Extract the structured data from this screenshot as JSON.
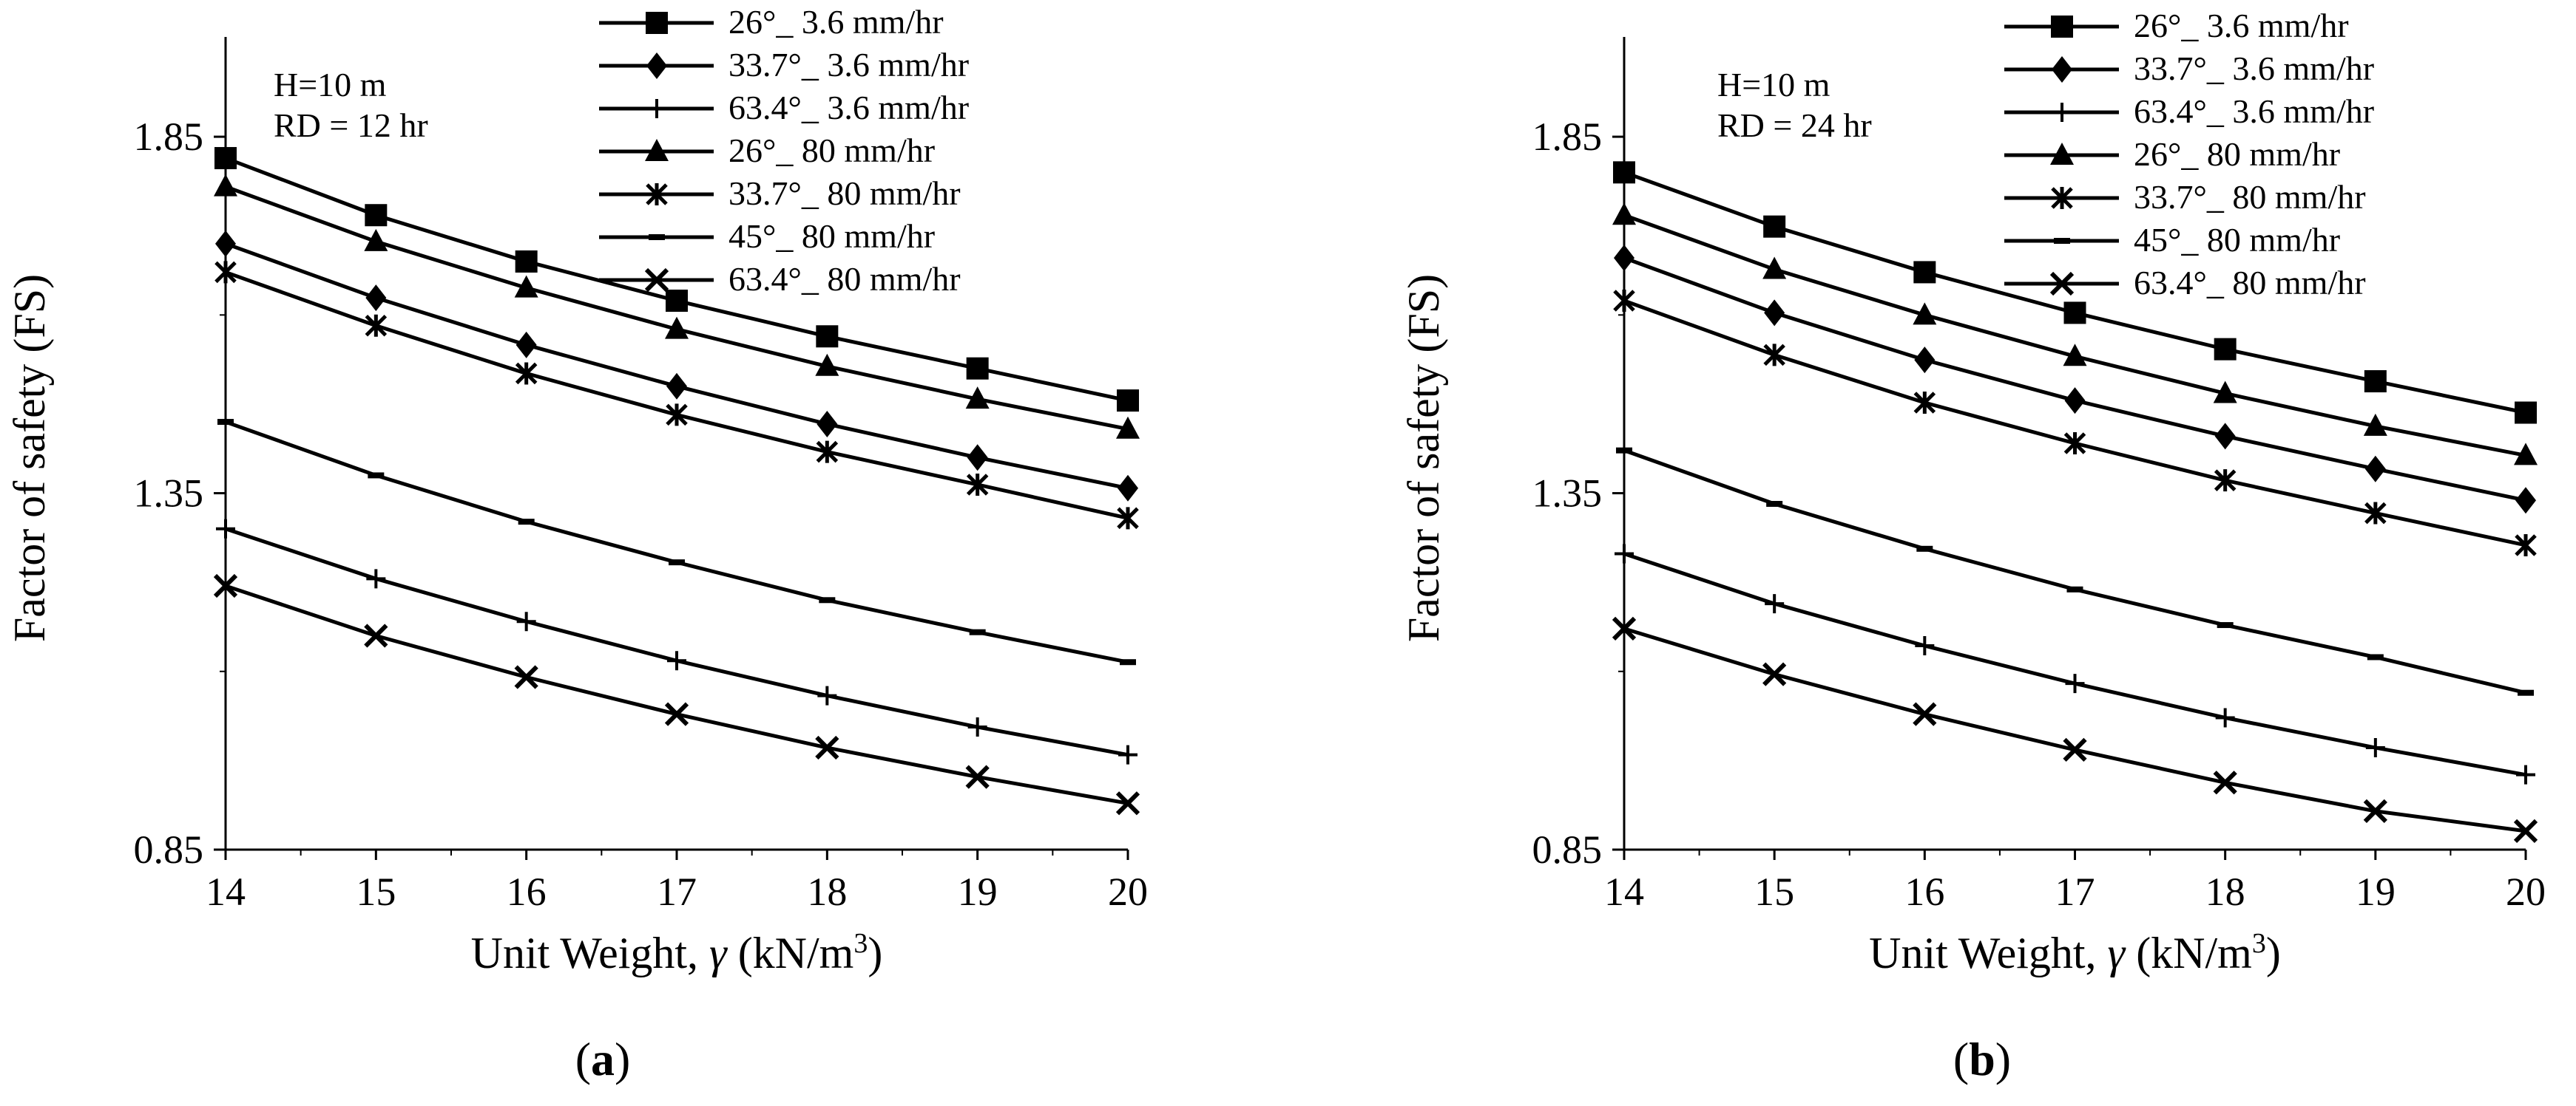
{
  "chart_data": [
    {
      "type": "line",
      "panel_label": "(a)",
      "annotation": [
        "H=10 m",
        "RD = 12 hr"
      ],
      "xlabel": "Unit Weight, γ (kN/m³)",
      "ylabel": "Factor of safety  (FS)",
      "xlim": [
        14,
        20
      ],
      "ylim": [
        0.85,
        1.99
      ],
      "xticks": [
        "14",
        "15",
        "16",
        "17",
        "18",
        "19",
        "20"
      ],
      "yticks": [
        "0.85",
        "1.35",
        "1.85"
      ],
      "x": [
        14,
        15,
        16,
        17,
        18,
        19,
        20
      ],
      "legend_position": "top-right",
      "series": [
        {
          "name": "26°_ 3.6 mm/hr",
          "marker": "square",
          "values": [
            1.82,
            1.74,
            1.675,
            1.62,
            1.57,
            1.525,
            1.48
          ]
        },
        {
          "name": "33.7°_ 3.6 mm/hr",
          "marker": "diamond",
          "values": [
            1.7,
            1.624,
            1.558,
            1.5,
            1.447,
            1.4,
            1.357
          ]
        },
        {
          "name": "63.4°_ 3.6 mm/hr",
          "marker": "plus",
          "values": [
            1.3,
            1.23,
            1.17,
            1.115,
            1.066,
            1.022,
            0.983
          ]
        },
        {
          "name": "26°_ 80 mm/hr",
          "marker": "triangle",
          "values": [
            1.78,
            1.703,
            1.638,
            1.58,
            1.528,
            1.482,
            1.44
          ]
        },
        {
          "name": "33.7°_ 80 mm/hr",
          "marker": "asterisk",
          "values": [
            1.66,
            1.585,
            1.518,
            1.46,
            1.408,
            1.362,
            1.315
          ]
        },
        {
          "name": "45°_ 80 mm/hr",
          "marker": "dash",
          "values": [
            1.45,
            1.375,
            1.31,
            1.253,
            1.2,
            1.155,
            1.113
          ]
        },
        {
          "name": "63.4°_ 80 mm/hr",
          "marker": "cross",
          "values": [
            1.22,
            1.15,
            1.092,
            1.04,
            0.993,
            0.952,
            0.915
          ]
        }
      ]
    },
    {
      "type": "line",
      "panel_label": "(b)",
      "annotation": [
        "H=10 m",
        "RD = 24 hr"
      ],
      "xlabel": "Unit Weight, γ (kN/m³)",
      "ylabel": "Factor of safety  (FS)",
      "xlim": [
        14,
        20
      ],
      "ylim": [
        0.85,
        1.99
      ],
      "xticks": [
        "14",
        "15",
        "16",
        "17",
        "18",
        "19",
        "20"
      ],
      "yticks": [
        "0.85",
        "1.35",
        "1.85"
      ],
      "x": [
        14,
        15,
        16,
        17,
        18,
        19,
        20
      ],
      "legend_position": "top-right",
      "series": [
        {
          "name": "26°_ 3.6 mm/hr",
          "marker": "square",
          "values": [
            1.8,
            1.724,
            1.66,
            1.603,
            1.552,
            1.507,
            1.463
          ]
        },
        {
          "name": "33.7°_ 3.6 mm/hr",
          "marker": "diamond",
          "values": [
            1.68,
            1.603,
            1.537,
            1.48,
            1.43,
            1.384,
            1.34
          ]
        },
        {
          "name": "63.4°_ 3.6 mm/hr",
          "marker": "plus",
          "values": [
            1.265,
            1.195,
            1.136,
            1.083,
            1.035,
            0.993,
            0.955
          ]
        },
        {
          "name": "26°_ 80 mm/hr",
          "marker": "triangle",
          "values": [
            1.74,
            1.664,
            1.6,
            1.542,
            1.49,
            1.444,
            1.403
          ]
        },
        {
          "name": "33.7°_ 80 mm/hr",
          "marker": "asterisk",
          "values": [
            1.62,
            1.544,
            1.477,
            1.42,
            1.368,
            1.322,
            1.277
          ]
        },
        {
          "name": "45°_ 80 mm/hr",
          "marker": "dash",
          "values": [
            1.41,
            1.335,
            1.272,
            1.215,
            1.165,
            1.12,
            1.07
          ]
        },
        {
          "name": "63.4°_ 80 mm/hr",
          "marker": "cross",
          "values": [
            1.16,
            1.096,
            1.04,
            0.99,
            0.944,
            0.904,
            0.876
          ]
        }
      ]
    }
  ]
}
